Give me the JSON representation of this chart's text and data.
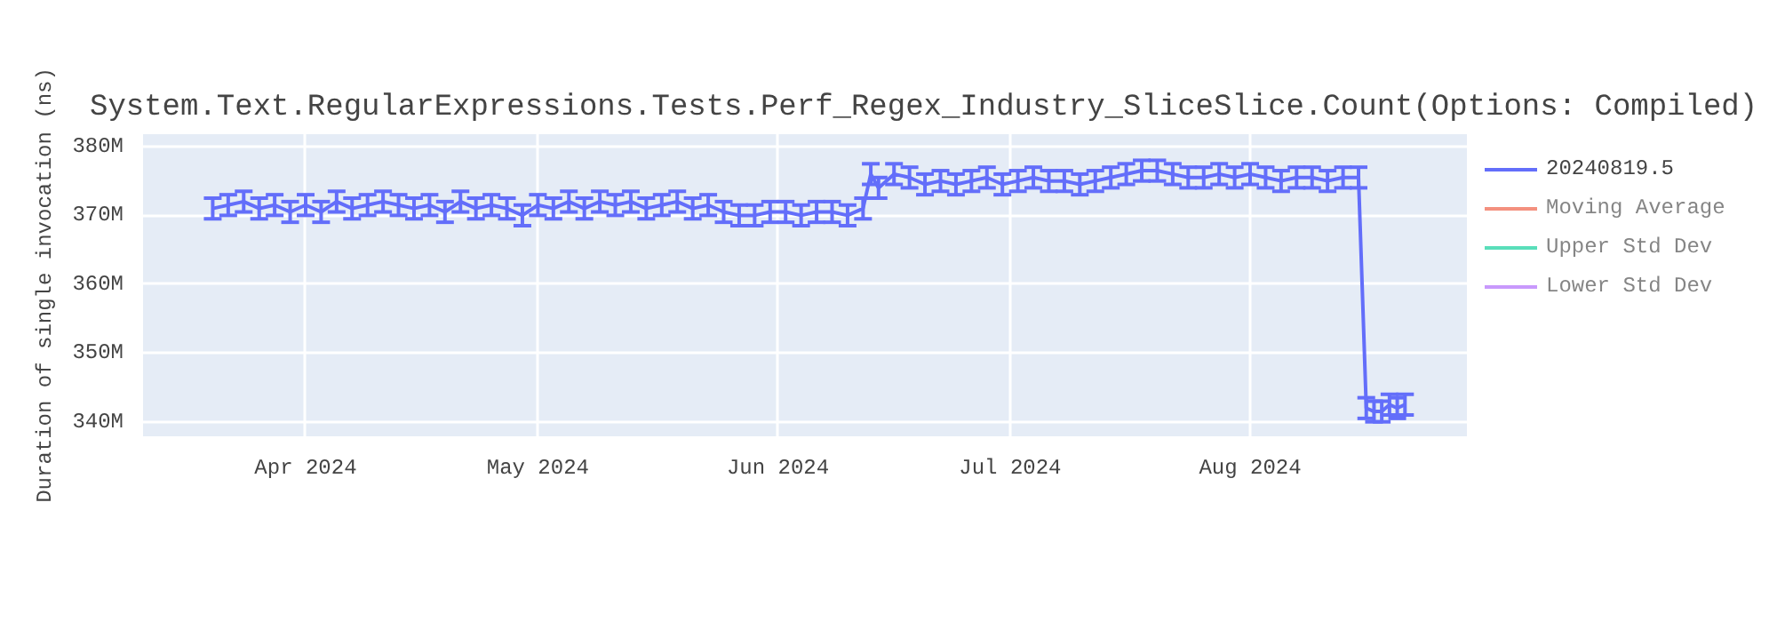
{
  "chart_data": {
    "type": "line",
    "title": "System.Text.RegularExpressions.Tests.Perf_Regex_Industry_SliceSlice.Count(Options: Compiled)",
    "ylabel": "Duration of single invocation (ns)",
    "x": [
      "2024-03-20",
      "2024-03-22",
      "2024-03-24",
      "2024-03-26",
      "2024-03-28",
      "2024-03-30",
      "2024-04-01",
      "2024-04-03",
      "2024-04-05",
      "2024-04-07",
      "2024-04-09",
      "2024-04-11",
      "2024-04-13",
      "2024-04-15",
      "2024-04-17",
      "2024-04-19",
      "2024-04-21",
      "2024-04-23",
      "2024-04-25",
      "2024-04-27",
      "2024-04-29",
      "2024-05-01",
      "2024-05-03",
      "2024-05-05",
      "2024-05-07",
      "2024-05-09",
      "2024-05-11",
      "2024-05-13",
      "2024-05-15",
      "2024-05-17",
      "2024-05-19",
      "2024-05-21",
      "2024-05-23",
      "2024-05-25",
      "2024-05-27",
      "2024-05-29",
      "2024-05-31",
      "2024-06-02",
      "2024-06-04",
      "2024-06-06",
      "2024-06-08",
      "2024-06-10",
      "2024-06-12",
      "2024-06-13",
      "2024-06-14",
      "2024-06-16",
      "2024-06-18",
      "2024-06-20",
      "2024-06-22",
      "2024-06-24",
      "2024-06-26",
      "2024-06-28",
      "2024-06-30",
      "2024-07-02",
      "2024-07-04",
      "2024-07-06",
      "2024-07-08",
      "2024-07-10",
      "2024-07-12",
      "2024-07-14",
      "2024-07-16",
      "2024-07-18",
      "2024-07-20",
      "2024-07-22",
      "2024-07-24",
      "2024-07-26",
      "2024-07-28",
      "2024-07-30",
      "2024-08-01",
      "2024-08-03",
      "2024-08-05",
      "2024-08-07",
      "2024-08-09",
      "2024-08-11",
      "2024-08-13",
      "2024-08-15",
      "2024-08-16",
      "2024-08-17",
      "2024-08-18",
      "2024-08-19",
      "2024-08-20",
      "2024-08-21"
    ],
    "series": [
      {
        "name": "20240819.5",
        "color": "#636efa",
        "values": [
          371000000,
          371500000,
          372000000,
          371000000,
          371500000,
          370500000,
          371500000,
          370500000,
          372000000,
          371000000,
          371500000,
          372000000,
          371500000,
          371000000,
          371500000,
          370500000,
          372000000,
          371000000,
          371500000,
          371000000,
          370000000,
          371500000,
          371000000,
          372000000,
          371000000,
          372000000,
          371500000,
          372000000,
          371000000,
          371500000,
          372000000,
          371000000,
          371500000,
          370500000,
          370000000,
          370000000,
          370500000,
          370500000,
          370000000,
          370500000,
          370500000,
          370000000,
          371000000,
          376000000,
          374000000,
          376000000,
          375500000,
          374500000,
          375000000,
          374500000,
          375000000,
          375500000,
          374500000,
          375000000,
          375500000,
          375000000,
          375000000,
          374500000,
          375000000,
          375500000,
          376000000,
          376500000,
          376500000,
          376000000,
          375500000,
          375500000,
          376000000,
          375500000,
          376000000,
          375500000,
          375000000,
          375500000,
          375500000,
          375000000,
          375500000,
          375500000,
          342000000,
          341500000,
          341500000,
          342500000,
          342000000,
          342500000
        ],
        "errors": [
          1500000,
          1500000,
          1500000,
          1500000,
          1500000,
          1500000,
          1500000,
          1500000,
          1500000,
          1500000,
          1500000,
          1500000,
          1500000,
          1500000,
          1500000,
          1500000,
          1500000,
          1500000,
          1500000,
          1500000,
          1500000,
          1500000,
          1500000,
          1500000,
          1500000,
          1500000,
          1500000,
          1500000,
          1500000,
          1500000,
          1500000,
          1500000,
          1500000,
          1500000,
          1500000,
          1500000,
          1500000,
          1500000,
          1500000,
          1500000,
          1500000,
          1500000,
          1500000,
          1500000,
          1500000,
          1500000,
          1500000,
          1500000,
          1500000,
          1500000,
          1500000,
          1500000,
          1500000,
          1500000,
          1500000,
          1500000,
          1500000,
          1500000,
          1500000,
          1500000,
          1500000,
          1500000,
          1500000,
          1500000,
          1500000,
          1500000,
          1500000,
          1500000,
          1500000,
          1500000,
          1500000,
          1500000,
          1500000,
          1500000,
          1500000,
          1500000,
          1500000,
          1500000,
          1500000,
          1500000,
          1500000,
          1500000
        ]
      },
      {
        "name": "Moving Average",
        "color": "#ef553b",
        "values": [
          null,
          null,
          null,
          null,
          null,
          null,
          null,
          null,
          null,
          null,
          null,
          null,
          null,
          null,
          null,
          null,
          null,
          null,
          null,
          null,
          null,
          null,
          null,
          null,
          null,
          null,
          null,
          null,
          null,
          null,
          null,
          null,
          null,
          null,
          null,
          null,
          null,
          null,
          null,
          null,
          null,
          null,
          null,
          null,
          null,
          null,
          null,
          null,
          null,
          null,
          null,
          null,
          null,
          null,
          null,
          null,
          null,
          null,
          null,
          null,
          null,
          null,
          null,
          null,
          null,
          null,
          null,
          null,
          null,
          null,
          null,
          null,
          null,
          null,
          null,
          null,
          null,
          null,
          null,
          null,
          null,
          null
        ]
      },
      {
        "name": "Upper Std Dev",
        "color": "#00cc96",
        "values": [
          null,
          null,
          null,
          null,
          null,
          null,
          null,
          null,
          null,
          null,
          null,
          null,
          null,
          null,
          null,
          null,
          null,
          null,
          null,
          null,
          null,
          null,
          null,
          null,
          null,
          null,
          null,
          null,
          null,
          null,
          null,
          null,
          null,
          null,
          null,
          null,
          null,
          null,
          null,
          null,
          null,
          null,
          null,
          null,
          null,
          null,
          null,
          null,
          null,
          null,
          null,
          null,
          null,
          null,
          null,
          null,
          null,
          null,
          null,
          null,
          null,
          null,
          null,
          null,
          null,
          null,
          null,
          null,
          null,
          null,
          null,
          null,
          null,
          null,
          null,
          null,
          null,
          null,
          null,
          null,
          null,
          null
        ]
      },
      {
        "name": "Lower Std Dev",
        "color": "#ab63fa",
        "values": [
          null,
          null,
          null,
          null,
          null,
          null,
          null,
          null,
          null,
          null,
          null,
          null,
          null,
          null,
          null,
          null,
          null,
          null,
          null,
          null,
          null,
          null,
          null,
          null,
          null,
          null,
          null,
          null,
          null,
          null,
          null,
          null,
          null,
          null,
          null,
          null,
          null,
          null,
          null,
          null,
          null,
          null,
          null,
          null,
          null,
          null,
          null,
          null,
          null,
          null,
          null,
          null,
          null,
          null,
          null,
          null,
          null,
          null,
          null,
          null,
          null,
          null,
          null,
          null,
          null,
          null,
          null,
          null,
          null,
          null,
          null,
          null,
          null,
          null,
          null,
          null,
          null,
          null,
          null,
          null,
          null,
          null
        ]
      }
    ],
    "xlim": [
      "2024-03-11",
      "2024-08-29"
    ],
    "xticks": [
      {
        "value": "2024-04-01",
        "label": "Apr 2024"
      },
      {
        "value": "2024-05-01",
        "label": "May 2024"
      },
      {
        "value": "2024-06-01",
        "label": "Jun 2024"
      },
      {
        "value": "2024-07-01",
        "label": "Jul 2024"
      },
      {
        "value": "2024-08-01",
        "label": "Aug 2024"
      }
    ],
    "ylim": [
      337900000,
      381800000
    ],
    "yticks": [
      {
        "value": 340000000,
        "label": "340M"
      },
      {
        "value": 350000000,
        "label": "350M"
      },
      {
        "value": 360000000,
        "label": "360M"
      },
      {
        "value": 370000000,
        "label": "370M"
      },
      {
        "value": 380000000,
        "label": "380M"
      }
    ],
    "grid": true,
    "legend": "top right",
    "marker": "none",
    "line_style": "solid"
  }
}
